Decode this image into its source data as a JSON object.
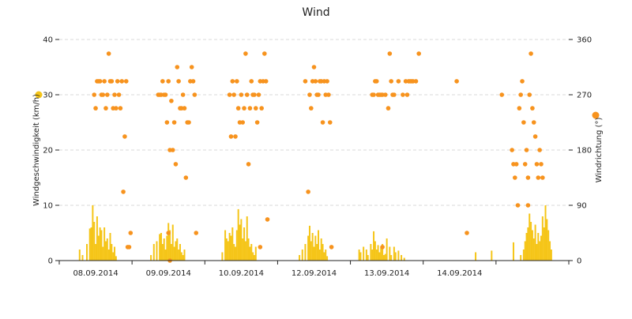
{
  "chart_data": {
    "type": "combo-bar-scatter",
    "title": "Wind",
    "y_left": {
      "label": "Windgeschwindigkeit (km/h)",
      "ticks": [
        0,
        10,
        20,
        30,
        40
      ],
      "range": [
        0,
        40
      ]
    },
    "y_right": {
      "label": "Windrichtung (°)",
      "ticks": [
        0,
        90,
        180,
        270,
        360
      ],
      "range": [
        0,
        360
      ]
    },
    "x": {
      "range_days": [
        0,
        7
      ],
      "ticks": [
        "08.09.2014",
        "09.09.2014",
        "10.09.2014",
        "12.09.2014",
        "13.09.2014",
        "14.09.2014"
      ]
    },
    "colors": {
      "speed": "#f5c518",
      "direction": "#f7931e",
      "grid": "#d9d9d9",
      "axis": "#222222"
    },
    "series": [
      {
        "name": "Windgeschwindigkeit (km/h)",
        "type": "bar",
        "values": [
          [
            0.28,
            2.0
          ],
          [
            0.32,
            1.0
          ],
          [
            0.38,
            3.0
          ],
          [
            0.42,
            5.8
          ],
          [
            0.44,
            6.0
          ],
          [
            0.46,
            10.0
          ],
          [
            0.48,
            7.0
          ],
          [
            0.5,
            3.0
          ],
          [
            0.52,
            8.0
          ],
          [
            0.54,
            4.5
          ],
          [
            0.56,
            6.0
          ],
          [
            0.58,
            5.5
          ],
          [
            0.6,
            2.5
          ],
          [
            0.62,
            6.0
          ],
          [
            0.64,
            3.5
          ],
          [
            0.66,
            4.0
          ],
          [
            0.68,
            2.0
          ],
          [
            0.7,
            5.0
          ],
          [
            0.72,
            3.0
          ],
          [
            0.74,
            1.5
          ],
          [
            0.76,
            2.5
          ],
          [
            0.78,
            0.8
          ],
          [
            1.26,
            1.0
          ],
          [
            1.3,
            3.0
          ],
          [
            1.34,
            3.5
          ],
          [
            1.38,
            4.8
          ],
          [
            1.4,
            5.0
          ],
          [
            1.42,
            3.0
          ],
          [
            1.44,
            4.0
          ],
          [
            1.46,
            2.0
          ],
          [
            1.48,
            4.5
          ],
          [
            1.5,
            6.8
          ],
          [
            1.52,
            5.5
          ],
          [
            1.54,
            3.0
          ],
          [
            1.56,
            6.5
          ],
          [
            1.58,
            2.5
          ],
          [
            1.6,
            3.5
          ],
          [
            1.62,
            4.0
          ],
          [
            1.64,
            2.0
          ],
          [
            1.66,
            3.0
          ],
          [
            1.68,
            1.5
          ],
          [
            1.7,
            1.0
          ],
          [
            1.72,
            2.0
          ],
          [
            2.24,
            1.5
          ],
          [
            2.28,
            5.5
          ],
          [
            2.3,
            4.0
          ],
          [
            2.32,
            3.5
          ],
          [
            2.34,
            5.0
          ],
          [
            2.36,
            4.5
          ],
          [
            2.38,
            6.0
          ],
          [
            2.4,
            3.0
          ],
          [
            2.42,
            2.5
          ],
          [
            2.44,
            5.5
          ],
          [
            2.46,
            9.3
          ],
          [
            2.48,
            6.5
          ],
          [
            2.5,
            7.5
          ],
          [
            2.52,
            4.0
          ],
          [
            2.54,
            6.0
          ],
          [
            2.56,
            3.5
          ],
          [
            2.58,
            8.0
          ],
          [
            2.6,
            4.0
          ],
          [
            2.62,
            2.5
          ],
          [
            2.64,
            3.0
          ],
          [
            2.66,
            1.5
          ],
          [
            2.68,
            1.0
          ],
          [
            2.7,
            2.5
          ],
          [
            3.3,
            1.0
          ],
          [
            3.34,
            2.0
          ],
          [
            3.38,
            3.0
          ],
          [
            3.42,
            4.5
          ],
          [
            3.44,
            6.3
          ],
          [
            3.46,
            3.5
          ],
          [
            3.48,
            5.0
          ],
          [
            3.5,
            2.5
          ],
          [
            3.52,
            4.5
          ],
          [
            3.54,
            3.0
          ],
          [
            3.56,
            5.5
          ],
          [
            3.58,
            2.0
          ],
          [
            3.6,
            4.0
          ],
          [
            3.62,
            3.0
          ],
          [
            3.64,
            1.5
          ],
          [
            3.66,
            2.0
          ],
          [
            3.68,
            0.8
          ],
          [
            4.12,
            2.0
          ],
          [
            4.14,
            1.5
          ],
          [
            4.18,
            2.5
          ],
          [
            4.22,
            2.0
          ],
          [
            4.24,
            1.0
          ],
          [
            4.28,
            3.0
          ],
          [
            4.3,
            2.0
          ],
          [
            4.32,
            5.3
          ],
          [
            4.34,
            3.5
          ],
          [
            4.36,
            2.0
          ],
          [
            4.38,
            2.8
          ],
          [
            4.4,
            1.5
          ],
          [
            4.42,
            2.5
          ],
          [
            4.44,
            3.0
          ],
          [
            4.46,
            1.0
          ],
          [
            4.48,
            1.2
          ],
          [
            4.5,
            4.0
          ],
          [
            4.54,
            2.5
          ],
          [
            4.56,
            1.0
          ],
          [
            4.6,
            2.5
          ],
          [
            4.62,
            1.5
          ],
          [
            4.66,
            1.8
          ],
          [
            4.7,
            1.0
          ],
          [
            4.74,
            0.5
          ],
          [
            5.72,
            1.5
          ],
          [
            5.94,
            1.8
          ],
          [
            6.24,
            3.3
          ],
          [
            6.34,
            1.0
          ],
          [
            6.38,
            2.0
          ],
          [
            6.4,
            3.5
          ],
          [
            6.42,
            5.0
          ],
          [
            6.44,
            6.0
          ],
          [
            6.46,
            8.5
          ],
          [
            6.48,
            7.0
          ],
          [
            6.5,
            5.5
          ],
          [
            6.52,
            4.0
          ],
          [
            6.54,
            6.5
          ],
          [
            6.56,
            3.0
          ],
          [
            6.58,
            5.0
          ],
          [
            6.6,
            3.5
          ],
          [
            6.62,
            4.5
          ],
          [
            6.64,
            8.0
          ],
          [
            6.66,
            6.0
          ],
          [
            6.68,
            10.0
          ],
          [
            6.7,
            7.5
          ],
          [
            6.72,
            5.5
          ],
          [
            6.74,
            3.5
          ],
          [
            6.76,
            2.0
          ]
        ]
      },
      {
        "name": "Windrichtung (°)",
        "type": "scatter",
        "values": [
          [
            0.48,
            270
          ],
          [
            0.52,
            292
          ],
          [
            0.54,
            292
          ],
          [
            0.56,
            292
          ],
          [
            0.58,
            270
          ],
          [
            0.6,
            270
          ],
          [
            0.62,
            292
          ],
          [
            0.64,
            248
          ],
          [
            0.66,
            270
          ],
          [
            0.68,
            337
          ],
          [
            0.7,
            292
          ],
          [
            0.72,
            292
          ],
          [
            0.74,
            248
          ],
          [
            0.76,
            270
          ],
          [
            0.78,
            248
          ],
          [
            0.8,
            292
          ],
          [
            0.82,
            270
          ],
          [
            0.84,
            248
          ],
          [
            0.86,
            292
          ],
          [
            0.88,
            112
          ],
          [
            0.9,
            202
          ],
          [
            0.92,
            292
          ],
          [
            0.94,
            22
          ],
          [
            0.96,
            22
          ],
          [
            0.98,
            45
          ],
          [
            0.5,
            248
          ],
          [
            1.36,
            270
          ],
          [
            1.38,
            270
          ],
          [
            1.4,
            270
          ],
          [
            1.42,
            292
          ],
          [
            1.44,
            270
          ],
          [
            1.46,
            270
          ],
          [
            1.48,
            225
          ],
          [
            1.5,
            292
          ],
          [
            1.52,
            180
          ],
          [
            1.54,
            260
          ],
          [
            1.56,
            180
          ],
          [
            1.58,
            225
          ],
          [
            1.6,
            157
          ],
          [
            1.62,
            315
          ],
          [
            1.64,
            292
          ],
          [
            1.66,
            248
          ],
          [
            1.68,
            248
          ],
          [
            1.7,
            270
          ],
          [
            1.72,
            248
          ],
          [
            1.74,
            135
          ],
          [
            1.76,
            225
          ],
          [
            1.78,
            225
          ],
          [
            1.8,
            292
          ],
          [
            1.82,
            315
          ],
          [
            1.84,
            292
          ],
          [
            1.86,
            270
          ],
          [
            1.88,
            45
          ],
          [
            1.5,
            45
          ],
          [
            1.52,
            0
          ],
          [
            2.34,
            270
          ],
          [
            2.36,
            202
          ],
          [
            2.38,
            292
          ],
          [
            2.4,
            270
          ],
          [
            2.42,
            202
          ],
          [
            2.44,
            292
          ],
          [
            2.46,
            248
          ],
          [
            2.48,
            225
          ],
          [
            2.5,
            270
          ],
          [
            2.52,
            225
          ],
          [
            2.54,
            248
          ],
          [
            2.56,
            337
          ],
          [
            2.58,
            270
          ],
          [
            2.6,
            157
          ],
          [
            2.62,
            248
          ],
          [
            2.64,
            292
          ],
          [
            2.66,
            270
          ],
          [
            2.68,
            270
          ],
          [
            2.7,
            248
          ],
          [
            2.72,
            225
          ],
          [
            2.74,
            270
          ],
          [
            2.76,
            292
          ],
          [
            2.78,
            248
          ],
          [
            2.8,
            292
          ],
          [
            2.82,
            337
          ],
          [
            2.84,
            292
          ],
          [
            2.86,
            67
          ],
          [
            2.76,
            22
          ],
          [
            3.38,
            292
          ],
          [
            3.42,
            112
          ],
          [
            3.44,
            270
          ],
          [
            3.46,
            248
          ],
          [
            3.48,
            292
          ],
          [
            3.5,
            315
          ],
          [
            3.52,
            292
          ],
          [
            3.54,
            270
          ],
          [
            3.56,
            270
          ],
          [
            3.58,
            292
          ],
          [
            3.6,
            292
          ],
          [
            3.62,
            225
          ],
          [
            3.64,
            292
          ],
          [
            3.66,
            270
          ],
          [
            3.68,
            292
          ],
          [
            3.7,
            270
          ],
          [
            3.72,
            225
          ],
          [
            3.74,
            22
          ],
          [
            4.3,
            270
          ],
          [
            4.32,
            270
          ],
          [
            4.34,
            292
          ],
          [
            4.36,
            292
          ],
          [
            4.38,
            270
          ],
          [
            4.4,
            270
          ],
          [
            4.42,
            270
          ],
          [
            4.44,
            270
          ],
          [
            4.48,
            270
          ],
          [
            4.52,
            248
          ],
          [
            4.54,
            337
          ],
          [
            4.56,
            292
          ],
          [
            4.58,
            270
          ],
          [
            4.6,
            270
          ],
          [
            4.66,
            292
          ],
          [
            4.72,
            270
          ],
          [
            4.76,
            292
          ],
          [
            4.78,
            270
          ],
          [
            4.8,
            292
          ],
          [
            4.82,
            292
          ],
          [
            4.84,
            292
          ],
          [
            4.86,
            292
          ],
          [
            4.9,
            292
          ],
          [
            4.94,
            337
          ],
          [
            4.44,
            22
          ],
          [
            5.46,
            292
          ],
          [
            5.6,
            45
          ],
          [
            6.08,
            270
          ],
          [
            6.22,
            180
          ],
          [
            6.24,
            157
          ],
          [
            6.26,
            135
          ],
          [
            6.28,
            157
          ],
          [
            6.3,
            90
          ],
          [
            6.32,
            248
          ],
          [
            6.34,
            270
          ],
          [
            6.36,
            292
          ],
          [
            6.38,
            225
          ],
          [
            6.4,
            157
          ],
          [
            6.42,
            180
          ],
          [
            6.44,
            135
          ],
          [
            6.46,
            270
          ],
          [
            6.48,
            337
          ],
          [
            6.5,
            248
          ],
          [
            6.52,
            225
          ],
          [
            6.54,
            202
          ],
          [
            6.56,
            157
          ],
          [
            6.58,
            135
          ],
          [
            6.6,
            180
          ],
          [
            6.62,
            157
          ],
          [
            6.64,
            135
          ],
          [
            6.44,
            90
          ]
        ]
      }
    ],
    "legend": [
      "Windgeschwindigkeit (km/h)",
      "Windrichtung (°)"
    ],
    "grid": true
  }
}
